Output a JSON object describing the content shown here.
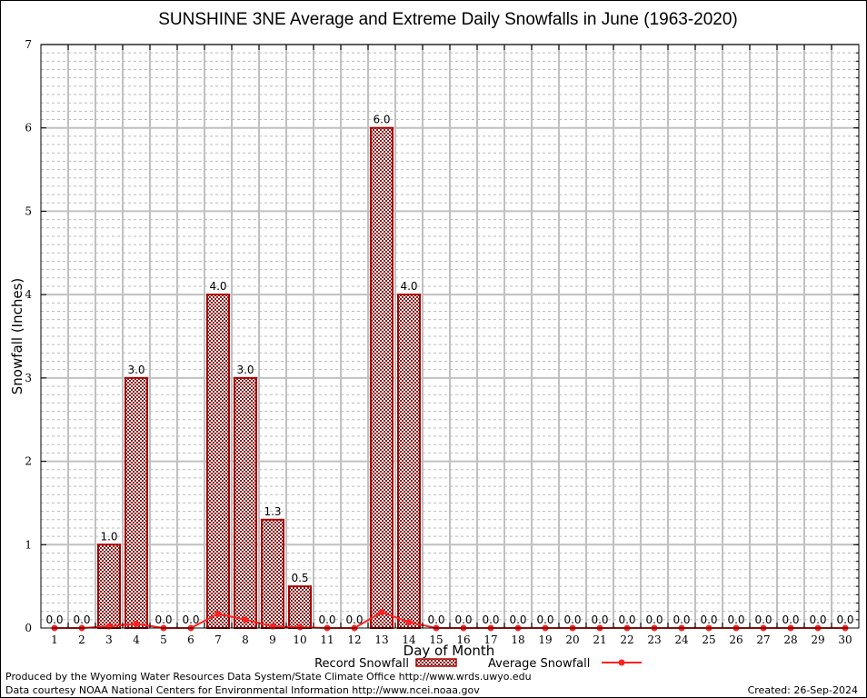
{
  "chart_data": {
    "type": "bar",
    "title": "SUNSHINE 3NE Average and Extreme Daily Snowfalls in June (1963-2020)",
    "xlabel": "Day of Month",
    "ylabel": "Snowfall (Inches)",
    "ylim": [
      0,
      7
    ],
    "yticks": [
      "0",
      "1",
      "2",
      "3",
      "4",
      "5",
      "6",
      "7"
    ],
    "grid": true,
    "categories": [
      "1",
      "2",
      "3",
      "4",
      "5",
      "6",
      "7",
      "8",
      "9",
      "10",
      "11",
      "12",
      "13",
      "14",
      "15",
      "16",
      "17",
      "18",
      "19",
      "20",
      "21",
      "22",
      "23",
      "24",
      "25",
      "26",
      "27",
      "28",
      "29",
      "30"
    ],
    "series": [
      {
        "name": "Record Snowfall",
        "kind": "bar",
        "values": [
          0.0,
          0.0,
          1.0,
          3.0,
          0.0,
          0.0,
          4.0,
          3.0,
          1.3,
          0.5,
          0.0,
          0.0,
          6.0,
          4.0,
          0.0,
          0.0,
          0.0,
          0.0,
          0.0,
          0.0,
          0.0,
          0.0,
          0.0,
          0.0,
          0.0,
          0.0,
          0.0,
          0.0,
          0.0,
          0.0
        ],
        "labels": [
          "0.0",
          "0.0",
          "1.0",
          "3.0",
          "0.0",
          "0.0",
          "4.0",
          "3.0",
          "1.3",
          "0.5",
          "0.0",
          "0.0",
          "6.0",
          "4.0",
          "0.0",
          "0.0",
          "0.0",
          "0.0",
          "0.0",
          "0.0",
          "0.0",
          "0.0",
          "0.0",
          "0.0",
          "0.0",
          "0.0",
          "0.0",
          "0.0",
          "0.0",
          "0.0"
        ],
        "color": "#aa0000"
      },
      {
        "name": "Average Snowfall",
        "kind": "line",
        "values": [
          0.0,
          0.0,
          0.02,
          0.05,
          0.0,
          0.0,
          0.17,
          0.1,
          0.02,
          0.01,
          0.0,
          0.0,
          0.19,
          0.07,
          0.0,
          0.0,
          0.0,
          0.0,
          0.0,
          0.0,
          0.0,
          0.0,
          0.0,
          0.0,
          0.0,
          0.0,
          0.0,
          0.0,
          0.0,
          0.0
        ],
        "color": "#ff2020"
      }
    ],
    "legend": "bottom-center"
  },
  "footer": {
    "line1": "Produced by the Wyoming Water Resources Data System/State Climate Office http://www.wrds.uwyo.edu",
    "line2": "Data courtesy NOAA National Centers for Environmental Information http://www.ncei.noaa.gov",
    "created": "Created: 26-Sep-2024"
  }
}
